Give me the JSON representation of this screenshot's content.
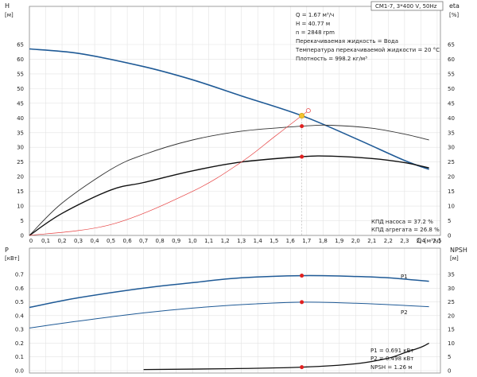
{
  "chart_data": [
    {
      "type": "line",
      "panel": "top",
      "model": "CM1-7, 3*400 V, 50Hz",
      "left_axis": {
        "name": "H",
        "unit": "[м]",
        "ticks": [
          0,
          5,
          10,
          15,
          20,
          25,
          30,
          35,
          40,
          45,
          50,
          55,
          60,
          65
        ]
      },
      "right_axis": {
        "name": "eta",
        "unit": "[%]",
        "ticks": [
          0,
          5,
          10,
          15,
          20,
          25,
          30,
          35,
          40,
          45,
          50,
          55,
          60,
          65
        ]
      },
      "x_axis": {
        "name": "Q",
        "unit": "[м³/ч]",
        "ticks": [
          "0,1",
          "0,2",
          "0,3",
          "0,4",
          "0,5",
          "0,6",
          "0,7",
          "0,8",
          "0,9",
          "1,0",
          "1,1",
          "1,2",
          "1,3",
          "1,4",
          "1,5",
          "1,6",
          "1,7",
          "1,8",
          "1,9",
          "2,0",
          "2,1",
          "2,2",
          "2,3",
          "2,4",
          "2,5"
        ],
        "range": [
          0,
          2.52
        ]
      },
      "info": [
        "Q = 1.67 м³/ч",
        "H = 40.77 м",
        "n = 2848 rpm",
        "Перекачиваемая жидкость = Вода",
        "Температура перекачиваемой жидкости = 20 °C",
        "Плотность = 998.2 кг/м³"
      ],
      "efficiency_labels": [
        "КПД насоса = 37.2 %",
        "КПД агрегата = 26.8 %"
      ],
      "series": [
        {
          "key": "H",
          "color": "#1f5a96",
          "x": [
            0,
            0.3,
            0.7,
            1.0,
            1.3,
            1.67,
            2.0,
            2.3,
            2.45
          ],
          "y": [
            63.5,
            62,
            57.5,
            53,
            47.5,
            40.8,
            33,
            25.5,
            22.5
          ]
        },
        {
          "key": "eta_pump",
          "color": "#333333",
          "x": [
            0,
            0.2,
            0.5,
            0.7,
            1.0,
            1.3,
            1.67,
            1.85,
            2.1,
            2.3,
            2.45
          ],
          "y": [
            0,
            11,
            22.5,
            27.5,
            32.5,
            35.5,
            37.2,
            37.5,
            36.5,
            34.5,
            32.5
          ]
        },
        {
          "key": "eta_unit",
          "color": "#111111",
          "x": [
            0,
            0.2,
            0.5,
            0.7,
            1.0,
            1.3,
            1.67,
            1.85,
            2.1,
            2.3,
            2.45
          ],
          "y": [
            0,
            7.5,
            15.5,
            18,
            22,
            25,
            26.8,
            27,
            26.2,
            24.8,
            23
          ]
        },
        {
          "key": "system",
          "color": "#e64040",
          "x": [
            0,
            0.5,
            1.0,
            1.3,
            1.5,
            1.67,
            1.71
          ],
          "y": [
            0,
            3.7,
            15,
            25,
            33.5,
            40.8,
            42.5
          ]
        }
      ],
      "duty_point": {
        "Q": 1.67,
        "H": 40.77,
        "eta_pump": 37.2,
        "eta_unit": 26.8
      }
    },
    {
      "type": "line",
      "panel": "bottom",
      "left_axis": {
        "name": "P",
        "unit": "[кВт]",
        "ticks": [
          "0.0",
          "0.1",
          "0.2",
          "0.3",
          "0.4",
          "0.5",
          "0.6",
          "0.7"
        ]
      },
      "right_axis": {
        "name": "NPSH",
        "unit": "[м]",
        "ticks": [
          0,
          5,
          10,
          15,
          20,
          25,
          30,
          35
        ]
      },
      "x_axis": {
        "range": [
          0,
          2.52
        ]
      },
      "info": [
        "P1 = 0.691 кВт",
        "P2 = 0.498 кВт",
        "NPSH = 1.26 м"
      ],
      "series": [
        {
          "key": "P1",
          "name": "P1",
          "color": "#1f5a96",
          "x": [
            0,
            0.3,
            0.7,
            1.0,
            1.3,
            1.67,
            2.0,
            2.2,
            2.45
          ],
          "y": [
            0.46,
            0.53,
            0.6,
            0.64,
            0.675,
            0.691,
            0.685,
            0.675,
            0.65
          ]
        },
        {
          "key": "P2",
          "name": "P2",
          "color": "#1f5a96",
          "x": [
            0,
            0.3,
            0.7,
            1.0,
            1.3,
            1.67,
            2.0,
            2.2,
            2.45
          ],
          "y": [
            0.31,
            0.36,
            0.42,
            0.455,
            0.48,
            0.498,
            0.49,
            0.48,
            0.465
          ]
        },
        {
          "key": "NPSH",
          "color": "#111111",
          "x": [
            0.7,
            1.2,
            1.67,
            2.0,
            2.2,
            2.3,
            2.4,
            2.45
          ],
          "y": [
            0.4,
            0.7,
            1.26,
            2.5,
            4.5,
            6.5,
            8.5,
            10
          ]
        }
      ]
    }
  ]
}
